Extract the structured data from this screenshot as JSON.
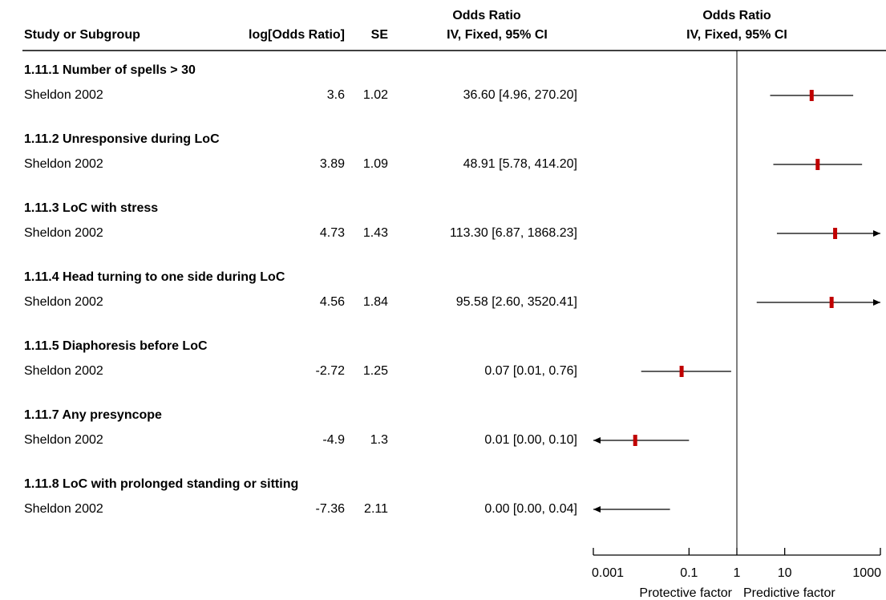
{
  "chart_data": {
    "type": "forest",
    "columns": {
      "study": "Study or Subgroup",
      "log_or": "log[Odds Ratio]",
      "se": "SE",
      "or_top": "Odds Ratio",
      "or_bottom": "IV, Fixed, 95% CI",
      "plot_top": "Odds Ratio",
      "plot_bottom": "IV, Fixed, 95% CI"
    },
    "groups": [
      {
        "title": "1.11.1 Number of spells > 30",
        "study": "Sheldon 2002",
        "log_or": 3.6,
        "se": 1.02,
        "or_label": "36.60 [4.96, 270.20]",
        "or": 36.6,
        "ci": [
          4.96,
          270.2
        ]
      },
      {
        "title": "1.11.2 Unresponsive during LoC",
        "study": "Sheldon 2002",
        "log_or": 3.89,
        "se": 1.09,
        "or_label": "48.91 [5.78, 414.20]",
        "or": 48.91,
        "ci": [
          5.78,
          414.2
        ]
      },
      {
        "title": "1.11.3 LoC with stress",
        "study": "Sheldon 2002",
        "log_or": 4.73,
        "se": 1.43,
        "or_label": "113.30 [6.87, 1868.23]",
        "or": 113.3,
        "ci": [
          6.87,
          1868.23
        ]
      },
      {
        "title": "1.11.4 Head turning to one side during LoC",
        "study": "Sheldon 2002",
        "log_or": 4.56,
        "se": 1.84,
        "or_label": "95.58 [2.60, 3520.41]",
        "or": 95.58,
        "ci": [
          2.6,
          3520.41
        ]
      },
      {
        "title": "1.11.5 Diaphoresis before LoC",
        "study": "Sheldon 2002",
        "log_or": -2.72,
        "se": 1.25,
        "or_label": "0.07 [0.01, 0.76]",
        "or": 0.07,
        "ci": [
          0.01,
          0.76
        ]
      },
      {
        "title": "1.11.7 Any presyncope",
        "study": "Sheldon 2002",
        "log_or": -4.9,
        "se": 1.3,
        "or_label": "0.01 [0.00, 0.10]",
        "or": 0.0075,
        "ci": [
          0.00058,
          0.1
        ]
      },
      {
        "title": "1.11.8 LoC with prolonged standing or sitting",
        "study": "Sheldon 2002",
        "log_or": -7.36,
        "se": 2.11,
        "or_label": "0.00 [0.00, 0.04]",
        "or": 0.00064,
        "ci": [
          1e-05,
          0.04
        ]
      }
    ],
    "marker_color": "#c00000",
    "log_scale": true,
    "xlim": [
      0.001,
      1000
    ],
    "xticks": [
      0.001,
      0.1,
      1,
      10,
      1000
    ],
    "reference": 1,
    "x_label_left": "Protective factor",
    "x_label_right": "Predictive factor"
  }
}
